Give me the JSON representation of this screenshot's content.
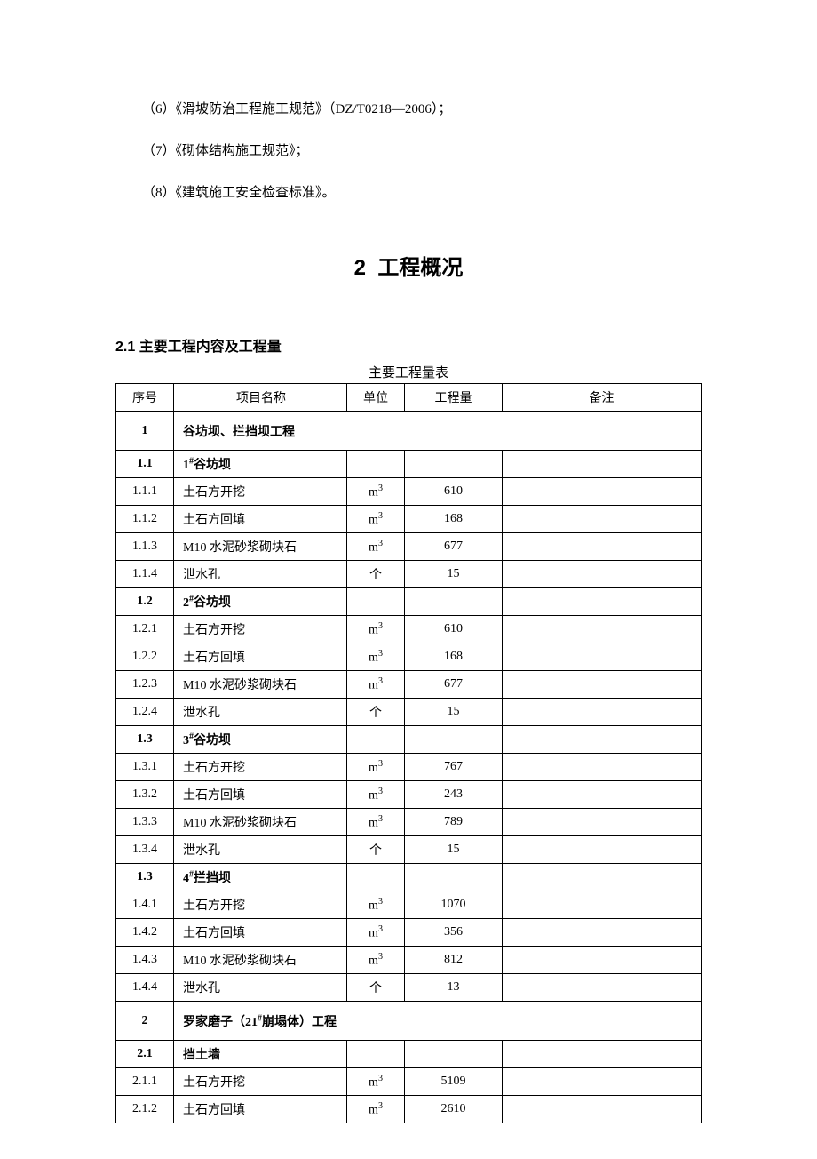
{
  "intro": {
    "line6": "（6）《滑坡防治工程施工规范》（DZ/T0218—2006）；",
    "line7": "（7）《砌体结构施工规范》；",
    "line8": "（8）《建筑施工安全检查标准》。"
  },
  "section": {
    "number": "2",
    "title": "工程概况"
  },
  "subsection": {
    "number": "2.1",
    "title": "主要工程内容及工程量"
  },
  "table": {
    "caption": "主要工程量表",
    "headers": {
      "seq": "序号",
      "name": "项目名称",
      "unit": "单位",
      "qty": "工程量",
      "note": "备注"
    },
    "unit_m3": "m³",
    "unit_ge": "个",
    "rows": [
      {
        "type": "header",
        "seq": "1",
        "name": "谷坊坝、拦挡坝工程"
      },
      {
        "type": "sub",
        "seq": "1.1",
        "name": "1#谷坊坝"
      },
      {
        "type": "data",
        "seq": "1.1.1",
        "name": "土石方开挖",
        "unit": "m³",
        "qty": "610"
      },
      {
        "type": "data",
        "seq": "1.1.2",
        "name": "土石方回填",
        "unit": "m³",
        "qty": "168"
      },
      {
        "type": "data",
        "seq": "1.1.3",
        "name": "M10 水泥砂浆砌块石",
        "unit": "m³",
        "qty": "677"
      },
      {
        "type": "data",
        "seq": "1.1.4",
        "name": "泄水孔",
        "unit": "个",
        "qty": "15"
      },
      {
        "type": "sub",
        "seq": "1.2",
        "name": "2#谷坊坝"
      },
      {
        "type": "data",
        "seq": "1.2.1",
        "name": "土石方开挖",
        "unit": "m³",
        "qty": "610"
      },
      {
        "type": "data",
        "seq": "1.2.2",
        "name": "土石方回填",
        "unit": "m³",
        "qty": "168"
      },
      {
        "type": "data",
        "seq": "1.2.3",
        "name": "M10 水泥砂浆砌块石",
        "unit": "m³",
        "qty": "677"
      },
      {
        "type": "data",
        "seq": "1.2.4",
        "name": "泄水孔",
        "unit": "个",
        "qty": "15"
      },
      {
        "type": "sub",
        "seq": "1.3",
        "name": "3#谷坊坝"
      },
      {
        "type": "data",
        "seq": "1.3.1",
        "name": "土石方开挖",
        "unit": "m³",
        "qty": "767"
      },
      {
        "type": "data",
        "seq": "1.3.2",
        "name": "土石方回填",
        "unit": "m³",
        "qty": "243"
      },
      {
        "type": "data",
        "seq": "1.3.3",
        "name": "M10 水泥砂浆砌块石",
        "unit": "m³",
        "qty": "789"
      },
      {
        "type": "data",
        "seq": "1.3.4",
        "name": "泄水孔",
        "unit": "个",
        "qty": "15"
      },
      {
        "type": "sub",
        "seq": "1.3",
        "name": "4#拦挡坝"
      },
      {
        "type": "data",
        "seq": "1.4.1",
        "name": "土石方开挖",
        "unit": "m³",
        "qty": "1070"
      },
      {
        "type": "data",
        "seq": "1.4.2",
        "name": "土石方回填",
        "unit": "m³",
        "qty": "356"
      },
      {
        "type": "data",
        "seq": "1.4.3",
        "name": "M10 水泥砂浆砌块石",
        "unit": "m³",
        "qty": "812"
      },
      {
        "type": "data",
        "seq": "1.4.4",
        "name": "泄水孔",
        "unit": "个",
        "qty": "13"
      },
      {
        "type": "header",
        "seq": "2",
        "name": "罗家磨子（21#崩塌体）工程"
      },
      {
        "type": "sub",
        "seq": "2.1",
        "name": "挡土墙"
      },
      {
        "type": "data",
        "seq": "2.1.1",
        "name": "土石方开挖",
        "unit": "m³",
        "qty": "5109"
      },
      {
        "type": "data",
        "seq": "2.1.2",
        "name": "土石方回填",
        "unit": "m³",
        "qty": "2610"
      }
    ]
  }
}
